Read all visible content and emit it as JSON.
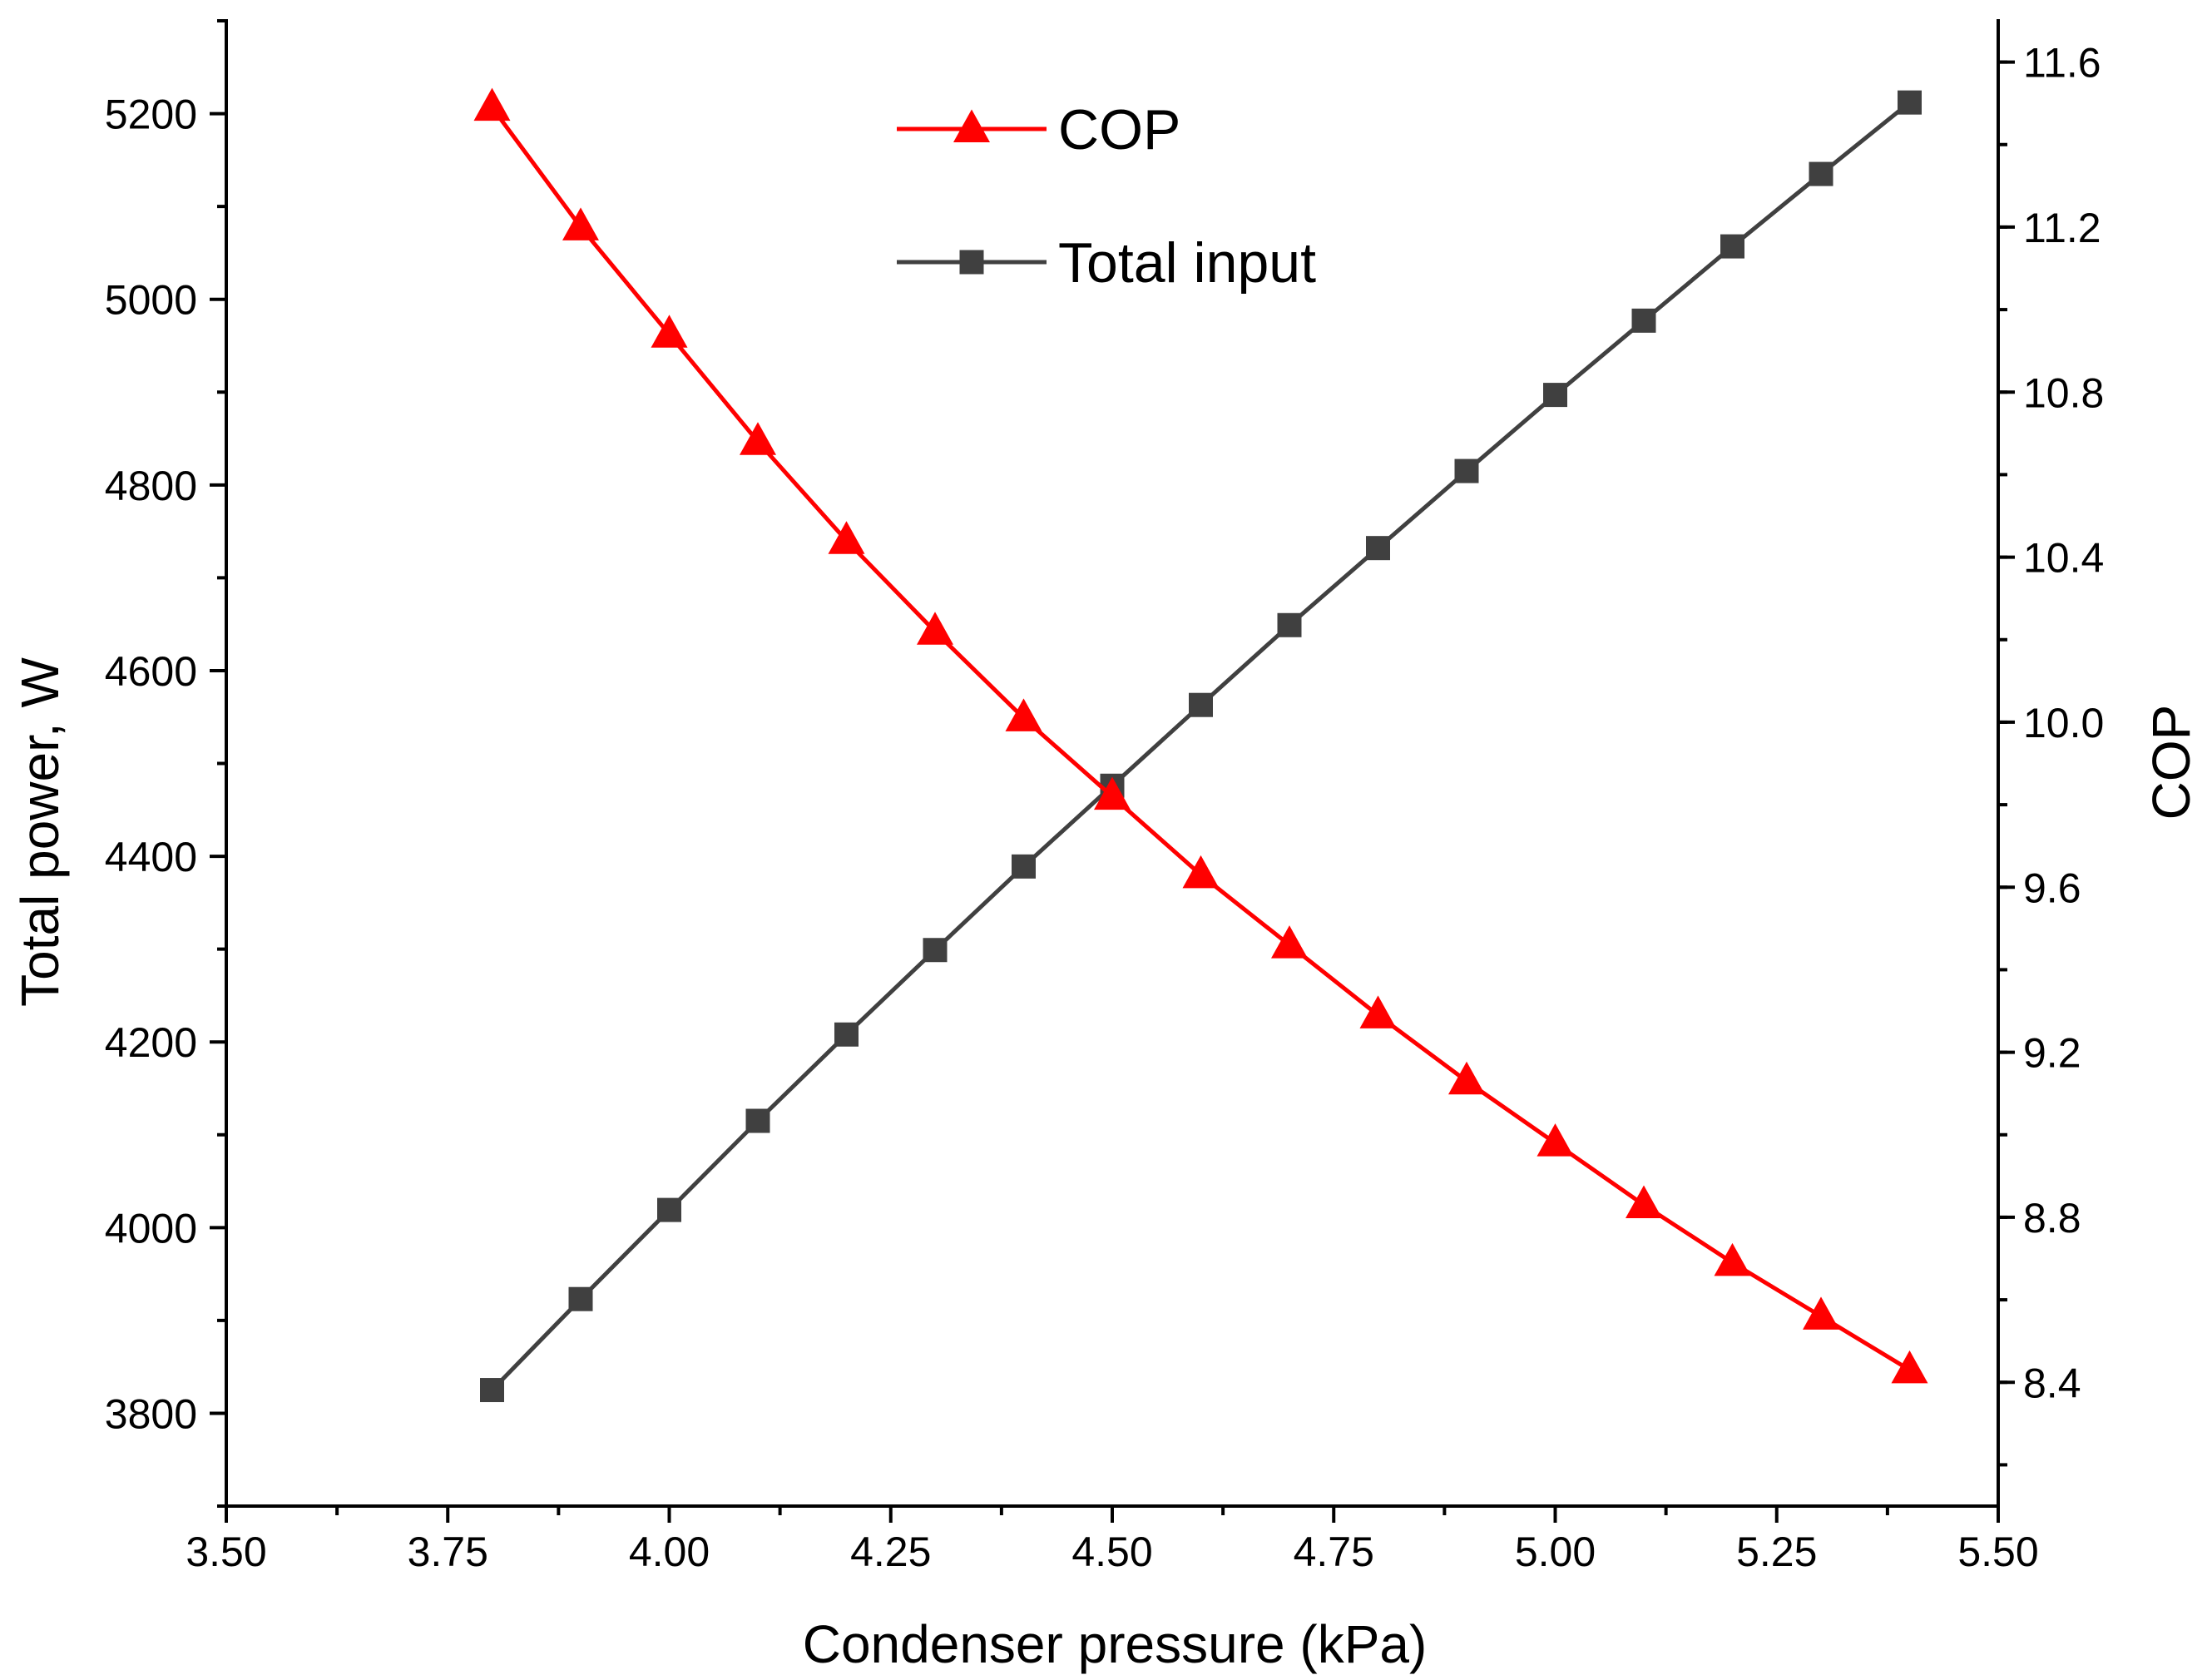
{
  "chart_data": {
    "type": "line",
    "title": "",
    "xlabel": "Condenser pressure (kPa)",
    "ylabel_left": "Total power, W",
    "ylabel_right": "COP",
    "xlim": [
      3.5,
      5.5
    ],
    "ylim_left": [
      3700,
      5300
    ],
    "ylim_right": [
      8.1,
      11.7
    ],
    "x_ticks": [
      "3.50",
      "3.75",
      "4.00",
      "4.25",
      "4.50",
      "4.75",
      "5.00",
      "5.25",
      "5.50"
    ],
    "y_left_ticks": [
      "3800",
      "4000",
      "4200",
      "4400",
      "4600",
      "4800",
      "5000",
      "5200"
    ],
    "y_right_ticks": [
      "8.4",
      "8.8",
      "9.2",
      "9.6",
      "10.0",
      "10.4",
      "10.8",
      "11.2",
      "11.6"
    ],
    "grid": false,
    "legend_position": "top-center",
    "x": [
      3.8,
      3.9,
      4.0,
      4.1,
      4.2,
      4.3,
      4.4,
      4.5,
      4.6,
      4.7,
      4.8,
      4.9,
      5.0,
      5.1,
      5.2,
      5.3,
      5.4
    ],
    "series": [
      {
        "name": "COP",
        "axis": "right",
        "color": "#ff0000",
        "marker": "triangle",
        "values": [
          11.49,
          11.2,
          10.94,
          10.68,
          10.44,
          10.22,
          10.01,
          9.82,
          9.63,
          9.46,
          9.29,
          9.13,
          8.98,
          8.83,
          8.69,
          8.56,
          8.43
        ]
      },
      {
        "name": "Total input",
        "axis": "left",
        "color": "#404040",
        "marker": "square",
        "values": [
          3825,
          3923,
          4019,
          4115,
          4208,
          4299,
          4389,
          4476,
          4563,
          4649,
          4732,
          4815,
          4897,
          4977,
          5057,
          5135,
          5212
        ]
      }
    ],
    "legend": [
      "COP",
      "Total input"
    ]
  }
}
